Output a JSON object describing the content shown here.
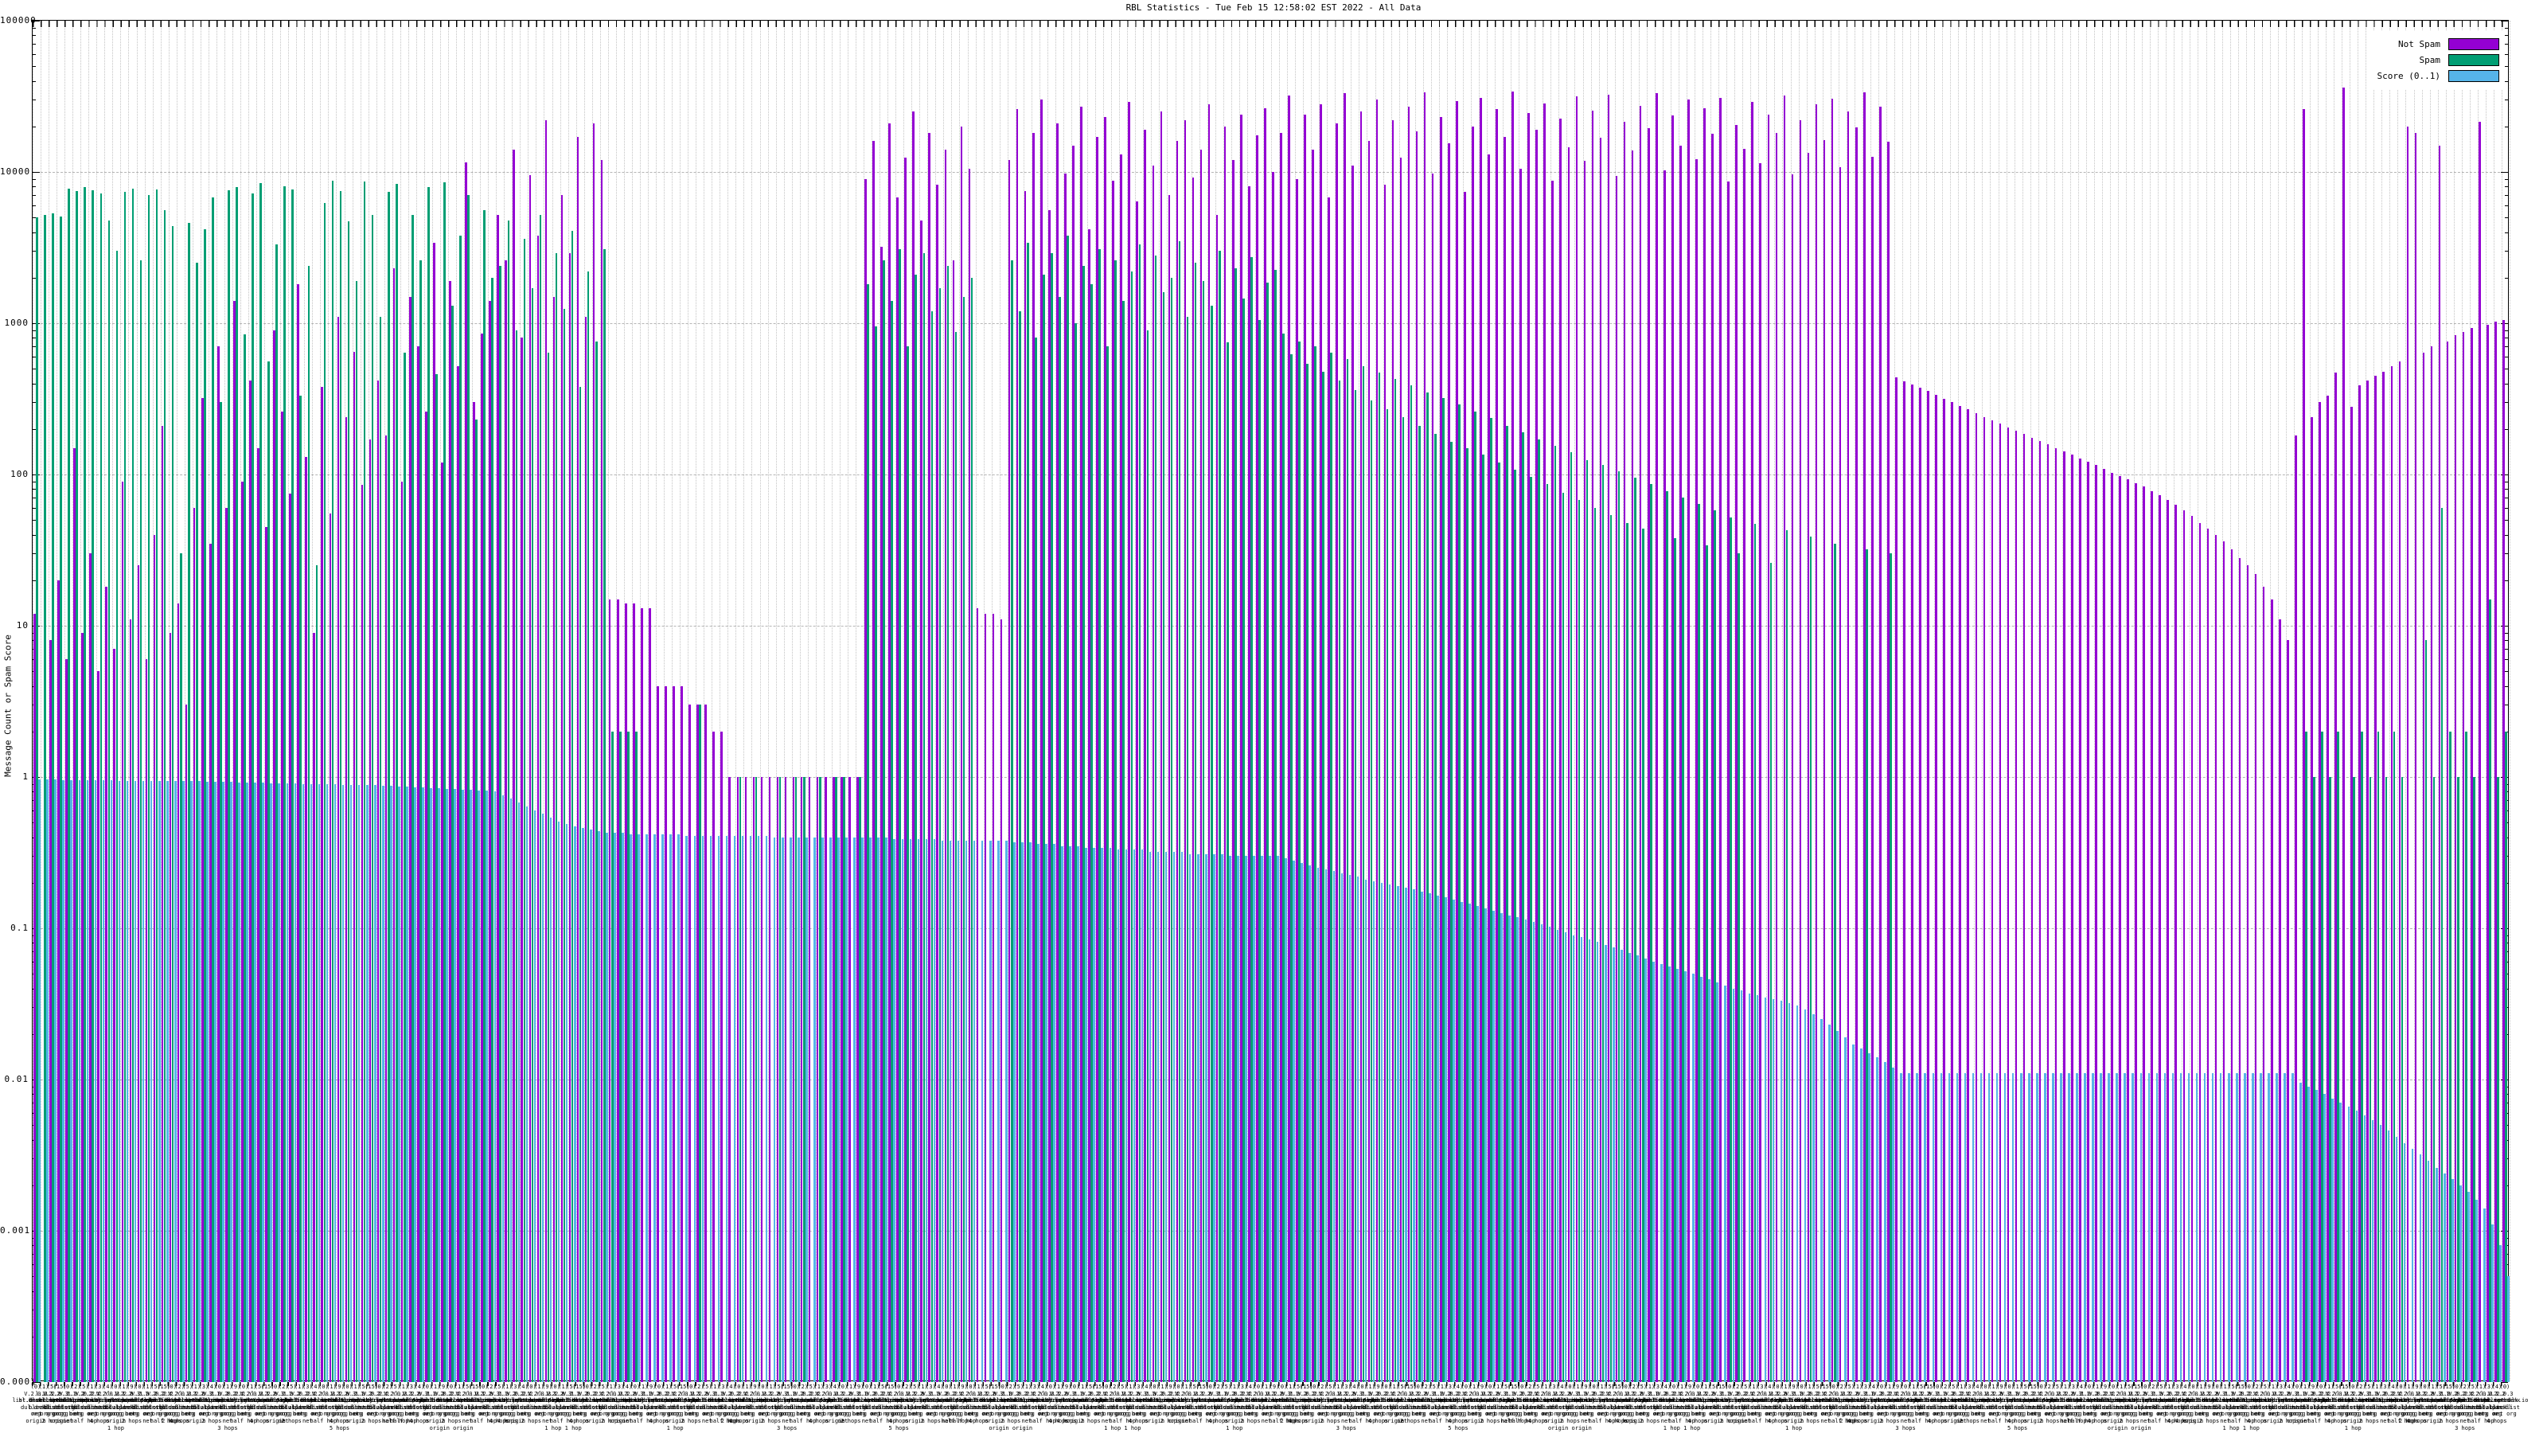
{
  "title": "RBL Statistics - Tue Feb 15 12:58:02 EST 2022 - All Data",
  "legend": {
    "items": [
      {
        "label": "Not Spam",
        "color": "#9400d3"
      },
      {
        "label": "Spam",
        "color": "#009e73"
      },
      {
        "label": "Score (0..1)",
        "color": "#56b4e9"
      }
    ]
  },
  "chart_data": {
    "type": "bar",
    "title": "RBL Statistics - Tue Feb 15 12:58:02 EST 2022 - All Data",
    "xlabel": "",
    "ylabel": "Message Count or Spam Score",
    "y_scale": "log",
    "ylim": [
      0.0001,
      100000
    ],
    "y_ticks": [
      "100000",
      "10000",
      "1000",
      "100",
      "10",
      "1",
      "0.1",
      "0.01",
      "0.001",
      "0.0001"
    ],
    "grid": true,
    "legend_position": "top-right",
    "x_labels_note": "~310 RBL/DNSBL entries; rotated multi-line tick labels overlap into an illegible band. Legible fragments include '(0)','(5)','V.2.0.3','origin','1 hop','2 hops','3 hops','4 hops','5 hops','net','half hop','origin origin'. Label text below is synthesized from those fragments.",
    "x_label_pools": {
      "counts": [
        0,
        1,
        5,
        15,
        0,
        2,
        5,
        1,
        3,
        4,
        0,
        1,
        9
      ],
      "versions": [
        "V.2.0.3",
        "l.1.2",
        "V.1.2",
        "2.0.3",
        "V.2.1",
        "1.0.2",
        "V.2.2",
        "0.2.Y",
        "2.2.Y"
      ],
      "names": [
        "list.dnsbl.net",
        "bl.blocklist.de",
        "dnsbl.sorbs.nx",
        "zen.spamblk.io",
        "rbl.mailspike.x",
        "dnsbl.dronebl.y",
        "list.uceprot.nz",
        "bl.spamcop.nyt",
        "psbl.surriel.cm",
        "dnsbl.justspam",
        "rbl.interserver",
        "bl.nordspam.pl",
        "dnsbl.rbl.webz",
        "truncate.gbudb",
        "dnsbl.zapbl.nt",
        "bl.0spam.fusion",
        "dnsbl.beetjevr"
      ],
      "subs": [
        "dul.dnsbl",
        "blocklist",
        "rbl.net",
        "dnsbl.org",
        "bl.tld",
        "dnsbl.dul",
        "rbl.zone",
        "dnsbl.web",
        "list.bl",
        "dnsbl.all",
        "rbl.spam"
      ],
      "orgs": [
        "org",
        "net org",
        "org org",
        "grorg",
        "org net",
        "borg",
        "org or"
      ],
      "quals": [
        "origin",
        "1 hop",
        "2 hops",
        "3 hops",
        "net",
        "5 hops",
        "half hop",
        "origin origin",
        "4 hops",
        "1 hop 1 hop"
      ]
    },
    "series": [
      {
        "name": "Not Spam",
        "color": "#9400d3",
        "values": [
          12,
          0,
          8,
          20,
          6,
          150,
          9,
          30,
          5,
          18,
          7,
          90,
          11,
          25,
          6,
          40,
          210,
          9,
          14,
          3,
          60,
          320,
          35,
          700,
          60,
          1400,
          90,
          420,
          150,
          45,
          900,
          260,
          75,
          1800,
          130,
          9,
          380,
          55,
          1100,
          240,
          650,
          85,
          170,
          420,
          180,
          2300,
          90,
          1500,
          700,
          260,
          3400,
          120,
          1900,
          520,
          11500,
          300,
          850,
          1400,
          5200,
          2600,
          14000,
          800,
          9500,
          3800,
          22000,
          1500,
          7000,
          2900,
          17000,
          1100,
          21000,
          12000,
          15,
          15,
          14,
          14,
          13,
          13,
          4,
          4,
          4,
          4,
          3,
          3,
          3,
          2,
          2,
          1,
          1,
          1,
          1,
          1,
          1,
          1,
          1,
          1,
          1,
          1,
          1,
          1,
          1,
          1,
          1,
          1,
          9000,
          16000,
          3200,
          21000,
          6800,
          12500,
          25000,
          4800,
          18000,
          8200,
          14000,
          2600,
          20000,
          10500,
          13,
          12,
          12,
          11,
          12000,
          26000,
          7500,
          18000,
          30000,
          5600,
          21000,
          9800,
          15000,
          27000,
          4200,
          17000,
          23000,
          8800,
          13000,
          29000,
          6400,
          19000,
          11000,
          25000,
          7000,
          16000,
          22000,
          9200,
          14000,
          28000,
          5200,
          20000,
          12000,
          24000,
          8000,
          17500,
          26500,
          10000,
          18000,
          32000,
          9000,
          24000,
          14000,
          28000,
          6800,
          21000,
          33000,
          11000,
          25000,
          16000,
          30000,
          8200,
          22000,
          12500,
          27000,
          18500,
          33500,
          9800,
          23000,
          15500,
          29500,
          7400,
          20000,
          31000,
          13000,
          26000,
          17000,
          34000,
          10500,
          24500,
          19000,
          28500,
          8800,
          22500,
          14500,
          31500,
          11800,
          25500,
          16800,
          32500,
          9400,
          21500,
          13800,
          27500,
          19500,
          33000,
          10200,
          23500,
          15000,
          30000,
          12200,
          26500,
          17800,
          31000,
          8600,
          20500,
          14200,
          29000,
          11400,
          24000,
          18200,
          32000,
          9600,
          22000,
          13400,
          28000,
          16200,
          30500,
          10800,
          25000,
          19800,
          33500,
          12600,
          27000,
          15800,
          440,
          415,
          395,
          375,
          355,
          335,
          315,
          300,
          285,
          270,
          255,
          240,
          228,
          216,
          205,
          195,
          185,
          175,
          166,
          158,
          150,
          142,
          135,
          128,
          121,
          115,
          109,
          103,
          98,
          93,
          88,
          83,
          78,
          73,
          68,
          63,
          58,
          53,
          48,
          44,
          40,
          36,
          32,
          28,
          25,
          22,
          18,
          15,
          11,
          8,
          180,
          26000,
          240,
          300,
          330,
          470,
          36000,
          280,
          390,
          420,
          450,
          480,
          520,
          560,
          20000,
          18000,
          640,
          700,
          15000,
          760,
          830,
          880,
          930,
          21500,
          980,
          1020,
          1050
        ]
      },
      {
        "name": "Spam",
        "color": "#009e73",
        "values": [
          5000,
          5200,
          5300,
          5100,
          7800,
          7500,
          7900,
          7600,
          7200,
          4800,
          3000,
          7400,
          7800,
          2600,
          7000,
          7700,
          5600,
          4400,
          30,
          4600,
          2500,
          4200,
          6800,
          300,
          7600,
          7900,
          840,
          7200,
          8400,
          560,
          3300,
          8000,
          7700,
          330,
          2400,
          25,
          6200,
          8800,
          7500,
          4700,
          1900,
          8600,
          5200,
          1100,
          7400,
          8300,
          640,
          5200,
          2600,
          7900,
          460,
          8500,
          1300,
          3800,
          7000,
          230,
          5600,
          2000,
          2400,
          4800,
          900,
          3600,
          1700,
          5200,
          640,
          2900,
          1250,
          4100,
          380,
          2200,
          760,
          3100,
          2,
          2,
          2,
          2,
          0,
          0,
          0,
          0,
          0,
          0,
          0,
          3,
          0,
          0,
          0,
          0,
          1,
          0,
          1,
          0,
          0,
          1,
          0,
          1,
          1,
          0,
          1,
          0,
          1,
          1,
          0,
          1,
          1800,
          950,
          2600,
          1400,
          3100,
          700,
          2100,
          2900,
          1200,
          1700,
          2400,
          880,
          1500,
          2000,
          0,
          0,
          0,
          0,
          2600,
          1200,
          3400,
          800,
          2100,
          2900,
          1500,
          3800,
          1000,
          2400,
          1800,
          3100,
          700,
          2600,
          1400,
          2200,
          3300,
          900,
          2800,
          1600,
          2000,
          3500,
          1100,
          2500,
          1900,
          1300,
          3000,
          750,
          2300,
          1450,
          2750,
          1050,
          1850,
          2250,
          850,
          620,
          760,
          540,
          700,
          480,
          640,
          420,
          580,
          360,
          520,
          310,
          470,
          270,
          430,
          240,
          390,
          210,
          350,
          185,
          320,
          165,
          290,
          150,
          260,
          135,
          235,
          120,
          210,
          108,
          190,
          96,
          170,
          86,
          155,
          76,
          140,
          68,
          125,
          60,
          115,
          54,
          105,
          48,
          95,
          44,
          86,
          0,
          78,
          38,
          70,
          0,
          64,
          34,
          58,
          0,
          52,
          30,
          0,
          47,
          0,
          26,
          0,
          43,
          0,
          0,
          39,
          0,
          0,
          35,
          0,
          0,
          0,
          32,
          0,
          0,
          30,
          0,
          0,
          0,
          0,
          0,
          0,
          0,
          0,
          0,
          0,
          0,
          0,
          0,
          0,
          0,
          0,
          0,
          0,
          0,
          0,
          0,
          0,
          0,
          0,
          0,
          0,
          0,
          0,
          0,
          0,
          0,
          0,
          0,
          0,
          0,
          0,
          0,
          0,
          0,
          0,
          0,
          0,
          0,
          0,
          0,
          0,
          0,
          0,
          0,
          0,
          0,
          2,
          1,
          2,
          1,
          2,
          0,
          1,
          2,
          1,
          2,
          1,
          2,
          1,
          0,
          0,
          8,
          1,
          60,
          2,
          1,
          2,
          1,
          0,
          15,
          1,
          2
        ]
      },
      {
        "name": "Score (0..1)",
        "color": "#56b4e9",
        "values": [
          0.96,
          0.96,
          0.96,
          0.95,
          0.95,
          0.95,
          0.95,
          0.95,
          0.95,
          0.95,
          0.94,
          0.94,
          0.94,
          0.94,
          0.94,
          0.94,
          0.94,
          0.94,
          0.94,
          0.94,
          0.94,
          0.93,
          0.93,
          0.93,
          0.93,
          0.92,
          0.92,
          0.92,
          0.92,
          0.91,
          0.91,
          0.91,
          0.91,
          0.9,
          0.9,
          0.9,
          0.9,
          0.9,
          0.89,
          0.89,
          0.89,
          0.89,
          0.89,
          0.87,
          0.87,
          0.86,
          0.86,
          0.85,
          0.85,
          0.84,
          0.84,
          0.83,
          0.83,
          0.82,
          0.82,
          0.81,
          0.81,
          0.8,
          0.76,
          0.72,
          0.68,
          0.64,
          0.6,
          0.57,
          0.54,
          0.51,
          0.49,
          0.47,
          0.46,
          0.45,
          0.44,
          0.43,
          0.43,
          0.43,
          0.42,
          0.42,
          0.42,
          0.42,
          0.42,
          0.42,
          0.42,
          0.41,
          0.41,
          0.41,
          0.41,
          0.41,
          0.41,
          0.41,
          0.41,
          0.41,
          0.41,
          0.41,
          0.4,
          0.4,
          0.4,
          0.4,
          0.4,
          0.4,
          0.4,
          0.4,
          0.4,
          0.4,
          0.4,
          0.4,
          0.4,
          0.4,
          0.4,
          0.39,
          0.39,
          0.39,
          0.39,
          0.39,
          0.39,
          0.38,
          0.38,
          0.38,
          0.38,
          0.38,
          0.38,
          0.38,
          0.38,
          0.38,
          0.37,
          0.37,
          0.37,
          0.36,
          0.36,
          0.36,
          0.35,
          0.35,
          0.35,
          0.34,
          0.34,
          0.34,
          0.34,
          0.33,
          0.33,
          0.33,
          0.33,
          0.32,
          0.32,
          0.32,
          0.32,
          0.32,
          0.31,
          0.31,
          0.31,
          0.31,
          0.31,
          0.3,
          0.3,
          0.3,
          0.3,
          0.3,
          0.3,
          0.3,
          0.29,
          0.28,
          0.27,
          0.26,
          0.25,
          0.245,
          0.24,
          0.23,
          0.225,
          0.22,
          0.21,
          0.205,
          0.2,
          0.195,
          0.19,
          0.185,
          0.18,
          0.175,
          0.17,
          0.165,
          0.16,
          0.155,
          0.15,
          0.145,
          0.14,
          0.135,
          0.13,
          0.126,
          0.122,
          0.118,
          0.114,
          0.11,
          0.106,
          0.102,
          0.098,
          0.094,
          0.09,
          0.087,
          0.084,
          0.081,
          0.078,
          0.075,
          0.072,
          0.069,
          0.066,
          0.063,
          0.06,
          0.058,
          0.056,
          0.054,
          0.052,
          0.05,
          0.048,
          0.046,
          0.044,
          0.042,
          0.04,
          0.039,
          0.037,
          0.036,
          0.035,
          0.034,
          0.033,
          0.032,
          0.031,
          0.029,
          0.027,
          0.025,
          0.023,
          0.021,
          0.019,
          0.017,
          0.016,
          0.015,
          0.014,
          0.013,
          0.012,
          0.011,
          0.011,
          0.011,
          0.011,
          0.011,
          0.011,
          0.011,
          0.011,
          0.011,
          0.011,
          0.011,
          0.011,
          0.011,
          0.011,
          0.011,
          0.011,
          0.011,
          0.011,
          0.011,
          0.011,
          0.011,
          0.011,
          0.011,
          0.011,
          0.011,
          0.011,
          0.011,
          0.011,
          0.011,
          0.011,
          0.011,
          0.011,
          0.011,
          0.011,
          0.011,
          0.011,
          0.011,
          0.011,
          0.011,
          0.011,
          0.011,
          0.011,
          0.011,
          0.011,
          0.011,
          0.011,
          0.011,
          0.011,
          0.011,
          0.011,
          0.0095,
          0.009,
          0.0085,
          0.008,
          0.0075,
          0.007,
          0.0066,
          0.0062,
          0.0058,
          0.0054,
          0.005,
          0.0046,
          0.0042,
          0.0038,
          0.0035,
          0.0032,
          0.0029,
          0.0026,
          0.0024,
          0.0022,
          0.002,
          0.0018,
          0.0016,
          0.0014,
          0.0011,
          0.0008,
          0.0005
        ]
      }
    ]
  }
}
